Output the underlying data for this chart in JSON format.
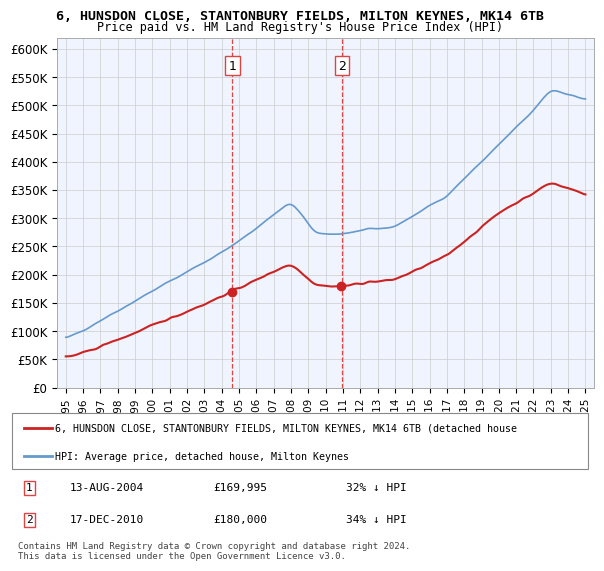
{
  "title1": "6, HUNSDON CLOSE, STANTONBURY FIELDS, MILTON KEYNES, MK14 6TB",
  "title2": "Price paid vs. HM Land Registry's House Price Index (HPI)",
  "ylabel": "",
  "ylim": [
    0,
    620000
  ],
  "yticks": [
    0,
    50000,
    100000,
    150000,
    200000,
    250000,
    300000,
    350000,
    400000,
    450000,
    500000,
    550000,
    600000
  ],
  "ytick_labels": [
    "£0",
    "£50K",
    "£100K",
    "£150K",
    "£200K",
    "£250K",
    "£300K",
    "£350K",
    "£400K",
    "£450K",
    "£500K",
    "£550K",
    "£600K"
  ],
  "hpi_color": "#6699cc",
  "price_color": "#cc2222",
  "marker_color": "#cc2222",
  "dashed_line_color": "#dd4444",
  "purchase1_date": "13-AUG-2004",
  "purchase1_price": 169995,
  "purchase1_hpi_pct": "32% ↓ HPI",
  "purchase2_date": "17-DEC-2010",
  "purchase2_price": 180000,
  "purchase2_hpi_pct": "34% ↓ HPI",
  "legend_line1": "6, HUNSDON CLOSE, STANTONBURY FIELDS, MILTON KEYNES, MK14 6TB (detached house",
  "legend_line2": "HPI: Average price, detached house, Milton Keynes",
  "footer": "Contains HM Land Registry data © Crown copyright and database right 2024.\nThis data is licensed under the Open Government Licence v3.0.",
  "background_color": "#ffffff",
  "plot_bg_color": "#f0f4ff"
}
